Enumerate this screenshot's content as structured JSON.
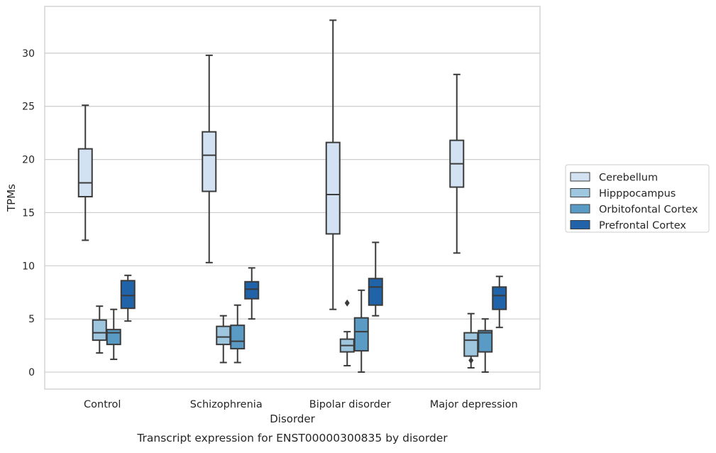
{
  "chart_data": {
    "type": "box",
    "title": "Transcript expression for ENST00000300835 by disorder",
    "xlabel": "Disorder",
    "ylabel": "TPMs",
    "categories": [
      "Control",
      "Schizophrenia",
      "Bipolar disorder",
      "Major depression"
    ],
    "yticks": [
      0,
      5,
      10,
      15,
      20,
      25,
      30
    ],
    "ylim": [
      -1.6,
      34.4
    ],
    "grid": "horizontal",
    "legend_position": "right",
    "series": [
      {
        "name": "Cerebellum",
        "color": "#d3e2f2",
        "boxes": [
          {
            "min": 12.4,
            "q1": 16.5,
            "median": 17.8,
            "q3": 21.0,
            "max": 25.1,
            "outliers": []
          },
          {
            "min": 10.3,
            "q1": 17.0,
            "median": 20.4,
            "q3": 22.6,
            "max": 29.8,
            "outliers": []
          },
          {
            "min": 5.9,
            "q1": 13.0,
            "median": 16.7,
            "q3": 21.6,
            "max": 33.1,
            "outliers": []
          },
          {
            "min": 11.2,
            "q1": 17.4,
            "median": 19.6,
            "q3": 21.8,
            "max": 28.0,
            "outliers": []
          }
        ]
      },
      {
        "name": "Hipppocampus",
        "color": "#9fc6df",
        "boxes": [
          {
            "min": 1.8,
            "q1": 3.0,
            "median": 3.7,
            "q3": 4.9,
            "max": 6.2,
            "outliers": []
          },
          {
            "min": 0.9,
            "q1": 2.6,
            "median": 3.3,
            "q3": 4.3,
            "max": 5.3,
            "outliers": []
          },
          {
            "min": 0.6,
            "q1": 1.9,
            "median": 2.5,
            "q3": 3.1,
            "max": 3.8,
            "outliers": [
              6.5
            ]
          },
          {
            "min": 0.4,
            "q1": 1.5,
            "median": 3.0,
            "q3": 3.7,
            "max": 5.5,
            "outliers": [
              1.1
            ]
          }
        ]
      },
      {
        "name": "Orbitofontal Cortex",
        "color": "#5a9bc6",
        "boxes": [
          {
            "min": 1.2,
            "q1": 2.6,
            "median": 3.7,
            "q3": 4.0,
            "max": 5.9,
            "outliers": []
          },
          {
            "min": 0.9,
            "q1": 2.2,
            "median": 2.9,
            "q3": 4.4,
            "max": 6.3,
            "outliers": []
          },
          {
            "min": 0.0,
            "q1": 2.0,
            "median": 3.8,
            "q3": 5.1,
            "max": 7.7,
            "outliers": []
          },
          {
            "min": 0.0,
            "q1": 1.9,
            "median": 3.7,
            "q3": 3.9,
            "max": 5.0,
            "outliers": []
          }
        ]
      },
      {
        "name": "Prefrontal Cortex",
        "color": "#2163a8",
        "boxes": [
          {
            "min": 4.8,
            "q1": 6.0,
            "median": 7.2,
            "q3": 8.6,
            "max": 9.1,
            "outliers": []
          },
          {
            "min": 5.0,
            "q1": 6.9,
            "median": 7.8,
            "q3": 8.5,
            "max": 9.8,
            "outliers": []
          },
          {
            "min": 5.3,
            "q1": 6.3,
            "median": 8.0,
            "q3": 8.8,
            "max": 12.2,
            "outliers": []
          },
          {
            "min": 4.2,
            "q1": 5.9,
            "median": 7.2,
            "q3": 8.0,
            "max": 9.0,
            "outliers": []
          }
        ]
      }
    ]
  }
}
